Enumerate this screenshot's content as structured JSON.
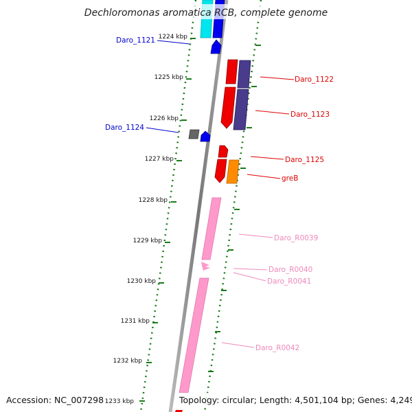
{
  "title": "Dechloromonas aromatica RCB, complete genome",
  "accession": "Accession: NC_007298",
  "topology": "Topology: circular; Length: 4,501,104 bp; Genes: 4,249",
  "ticks": [
    "1224 kbp",
    "1225 kbp",
    "1226 kbp",
    "1227 kbp",
    "1228 kbp",
    "1229 kbp",
    "1230 kbp",
    "1231 kbp",
    "1232 kbp",
    "1233 kbp"
  ],
  "genes": [
    {
      "label": "Daro_1121",
      "color": "#0000cc"
    },
    {
      "label": "Daro_1122",
      "color": "#dd0000"
    },
    {
      "label": "Daro_1123",
      "color": "#dd0000"
    },
    {
      "label": "Daro_1124",
      "color": "#0000cc"
    },
    {
      "label": "Daro_1125",
      "color": "#dd0000"
    },
    {
      "label": "greB",
      "color": "#dd0000"
    },
    {
      "label": "Daro_R0039",
      "color": "#ee88bb"
    },
    {
      "label": "Daro_R0040",
      "color": "#ee88bb"
    },
    {
      "label": "Daro_R0041",
      "color": "#ee88bb"
    },
    {
      "label": "Daro_R0042",
      "color": "#ee88bb"
    }
  ],
  "colors": {
    "backbone": "#888888",
    "cds_red": "#ee0000",
    "cds_purple": "#4a3c8c",
    "cds_blue": "#0000ee",
    "cds_cyan": "#00e5ee",
    "cds_gray": "#666666",
    "cds_orange": "#ff8c00",
    "rna_pink": "#ff99cc",
    "dotted_track": "#1a7a1a"
  }
}
